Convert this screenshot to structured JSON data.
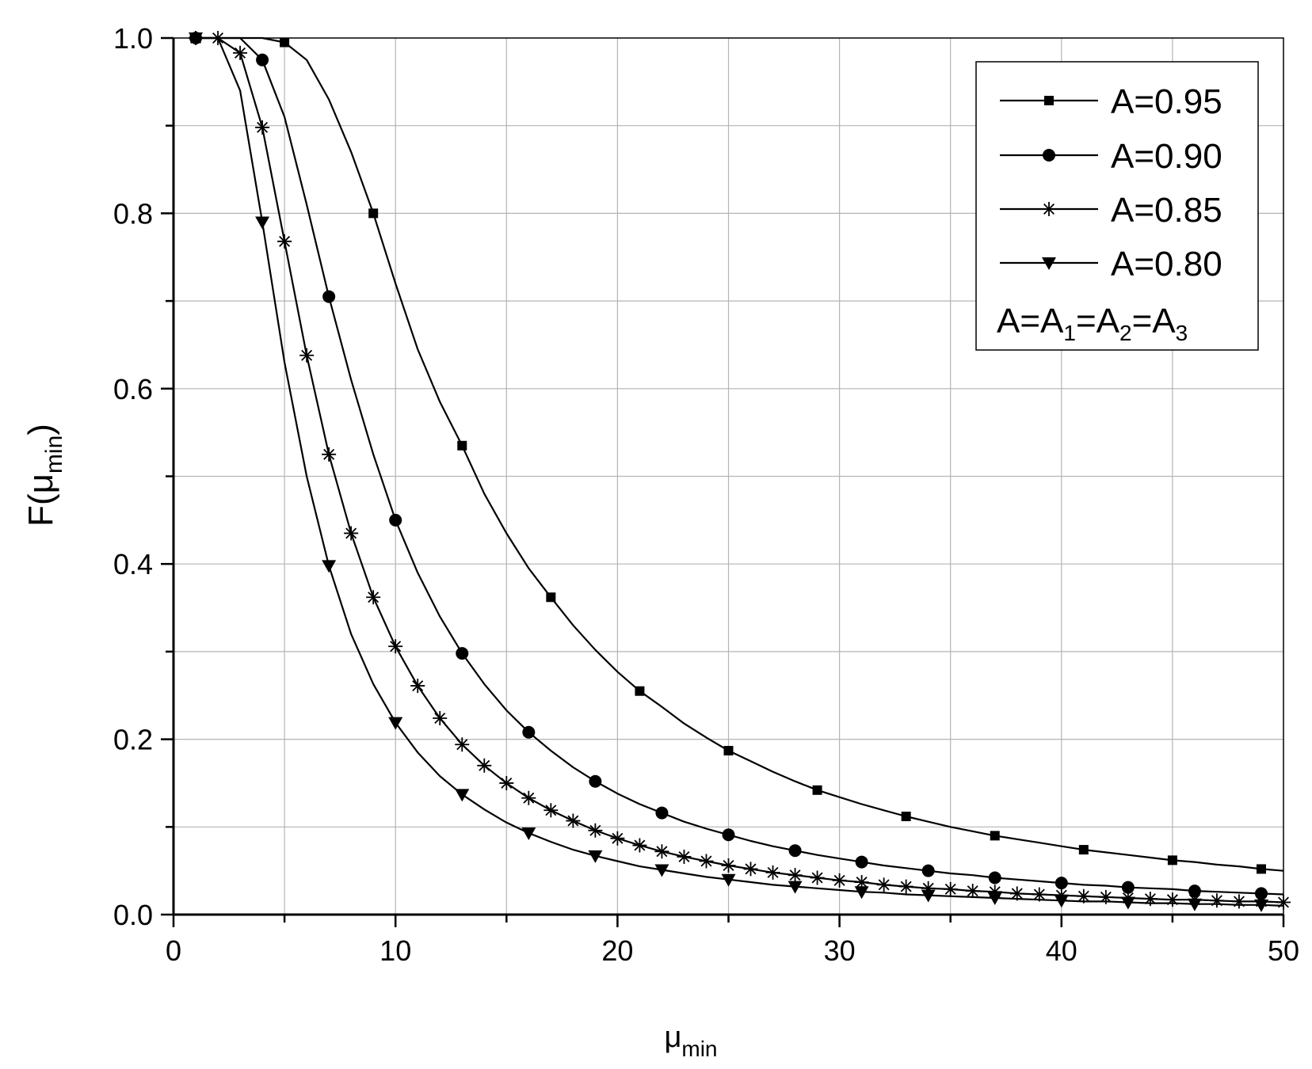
{
  "chart_data": {
    "type": "line",
    "title": "",
    "xlabel": "μ",
    "xlabel_sub": "min",
    "ylabel": "F(μ",
    "ylabel_sub": "min",
    "ylabel_close": ")",
    "xlim": [
      0,
      50
    ],
    "ylim": [
      0.0,
      1.0
    ],
    "xticks": [
      0,
      10,
      20,
      30,
      40,
      50
    ],
    "xtick_labels": [
      "0",
      "10",
      "20",
      "30",
      "40",
      "50"
    ],
    "yticks": [
      0.0,
      0.2,
      0.4,
      0.6,
      0.8,
      1.0
    ],
    "ytick_labels": [
      "0.0",
      "0.2",
      "0.4",
      "0.6",
      "0.8",
      "1.0"
    ],
    "grid": true,
    "legend_position": "top-right",
    "legend_note": {
      "base": "A=A",
      "sub1": "1",
      "mid1": "=A",
      "sub2": "2",
      "mid2": "=A",
      "sub3": "3"
    },
    "series": [
      {
        "name": "A=0.95",
        "marker": "square",
        "x": [
          1,
          2,
          3,
          4,
          5,
          6,
          7,
          8,
          9,
          10,
          11,
          12,
          13,
          14,
          15,
          16,
          17,
          18,
          19,
          20,
          21,
          22,
          23,
          24,
          25,
          26,
          27,
          28,
          29,
          30,
          31,
          32,
          33,
          34,
          35,
          36,
          37,
          38,
          39,
          40,
          41,
          42,
          43,
          44,
          45,
          46,
          47,
          48,
          49,
          50
        ],
        "y": [
          1.0,
          1.0,
          1.0,
          1.0,
          0.995,
          0.975,
          0.93,
          0.87,
          0.8,
          0.72,
          0.645,
          0.585,
          0.535,
          0.48,
          0.435,
          0.395,
          0.362,
          0.33,
          0.302,
          0.277,
          0.255,
          0.237,
          0.218,
          0.202,
          0.187,
          0.175,
          0.163,
          0.152,
          0.142,
          0.134,
          0.126,
          0.119,
          0.112,
          0.106,
          0.1,
          0.095,
          0.09,
          0.086,
          0.082,
          0.078,
          0.074,
          0.071,
          0.068,
          0.065,
          0.062,
          0.06,
          0.057,
          0.055,
          0.052,
          0.05
        ],
        "marker_x": [
          1,
          5,
          9,
          13,
          17,
          21,
          25,
          29,
          33,
          37,
          41,
          45,
          49
        ]
      },
      {
        "name": "A=0.90",
        "marker": "circle",
        "x": [
          1,
          2,
          3,
          4,
          5,
          6,
          7,
          8,
          9,
          10,
          11,
          12,
          13,
          14,
          15,
          16,
          17,
          18,
          19,
          20,
          21,
          22,
          23,
          24,
          25,
          26,
          27,
          28,
          29,
          30,
          31,
          32,
          33,
          34,
          35,
          36,
          37,
          38,
          39,
          40,
          41,
          42,
          43,
          44,
          45,
          46,
          47,
          48,
          49,
          50
        ],
        "y": [
          1.0,
          1.0,
          1.0,
          0.975,
          0.91,
          0.81,
          0.705,
          0.61,
          0.525,
          0.45,
          0.39,
          0.34,
          0.298,
          0.263,
          0.233,
          0.208,
          0.187,
          0.168,
          0.152,
          0.138,
          0.126,
          0.116,
          0.106,
          0.098,
          0.091,
          0.084,
          0.078,
          0.073,
          0.068,
          0.064,
          0.06,
          0.056,
          0.053,
          0.05,
          0.047,
          0.045,
          0.042,
          0.04,
          0.038,
          0.036,
          0.034,
          0.033,
          0.031,
          0.03,
          0.029,
          0.027,
          0.026,
          0.025,
          0.024,
          0.023
        ],
        "marker_x": [
          1,
          4,
          7,
          10,
          13,
          16,
          19,
          22,
          25,
          28,
          31,
          34,
          37,
          40,
          43,
          46,
          49
        ]
      },
      {
        "name": "A=0.85",
        "marker": "star",
        "x": [
          1,
          2,
          3,
          4,
          5,
          6,
          7,
          8,
          9,
          10,
          11,
          12,
          13,
          14,
          15,
          16,
          17,
          18,
          19,
          20,
          21,
          22,
          23,
          24,
          25,
          26,
          27,
          28,
          29,
          30,
          31,
          32,
          33,
          34,
          35,
          36,
          37,
          38,
          39,
          40,
          41,
          42,
          43,
          44,
          45,
          46,
          47,
          48,
          49,
          50
        ],
        "y": [
          1.0,
          1.0,
          0.983,
          0.898,
          0.768,
          0.638,
          0.525,
          0.435,
          0.362,
          0.306,
          0.261,
          0.224,
          0.194,
          0.17,
          0.15,
          0.133,
          0.119,
          0.107,
          0.096,
          0.087,
          0.079,
          0.072,
          0.066,
          0.061,
          0.056,
          0.052,
          0.048,
          0.045,
          0.042,
          0.039,
          0.037,
          0.034,
          0.032,
          0.03,
          0.029,
          0.027,
          0.026,
          0.024,
          0.023,
          0.022,
          0.021,
          0.02,
          0.019,
          0.018,
          0.017,
          0.017,
          0.016,
          0.015,
          0.015,
          0.014
        ],
        "marker_x": [
          1,
          2,
          3,
          4,
          5,
          6,
          7,
          8,
          9,
          10,
          11,
          12,
          13,
          14,
          15,
          16,
          17,
          18,
          19,
          20,
          21,
          22,
          23,
          24,
          25,
          26,
          27,
          28,
          29,
          30,
          31,
          32,
          33,
          34,
          35,
          36,
          37,
          38,
          39,
          40,
          41,
          42,
          43,
          44,
          45,
          46,
          47,
          48,
          49,
          50
        ]
      },
      {
        "name": "A=0.80",
        "marker": "triangle-down",
        "x": [
          1,
          2,
          3,
          4,
          5,
          6,
          7,
          8,
          9,
          10,
          11,
          12,
          13,
          14,
          15,
          16,
          17,
          18,
          19,
          20,
          21,
          22,
          23,
          24,
          25,
          26,
          27,
          28,
          29,
          30,
          31,
          32,
          33,
          34,
          35,
          36,
          37,
          38,
          39,
          40,
          41,
          42,
          43,
          44,
          45,
          46,
          47,
          48,
          49,
          50
        ],
        "y": [
          1.0,
          1.0,
          0.94,
          0.79,
          0.63,
          0.5,
          0.398,
          0.32,
          0.263,
          0.219,
          0.185,
          0.158,
          0.137,
          0.12,
          0.105,
          0.093,
          0.083,
          0.074,
          0.067,
          0.061,
          0.055,
          0.051,
          0.047,
          0.043,
          0.04,
          0.037,
          0.034,
          0.032,
          0.03,
          0.028,
          0.026,
          0.025,
          0.023,
          0.022,
          0.021,
          0.02,
          0.019,
          0.018,
          0.017,
          0.016,
          0.015,
          0.015,
          0.014,
          0.013,
          0.013,
          0.012,
          0.012,
          0.011,
          0.011,
          0.01
        ],
        "marker_x": [
          1,
          4,
          7,
          10,
          13,
          16,
          19,
          22,
          25,
          28,
          31,
          34,
          37,
          40,
          43,
          46,
          49
        ]
      }
    ]
  }
}
